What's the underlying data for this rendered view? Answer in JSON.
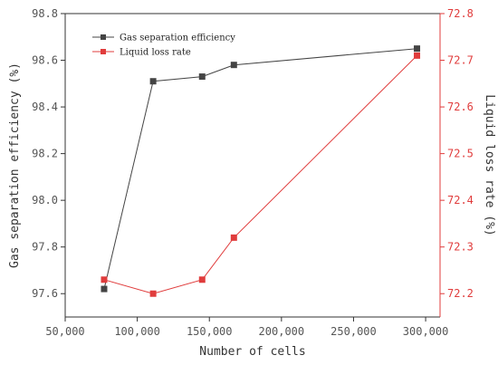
{
  "chart_data": {
    "type": "line",
    "xlabel": "Number of cells",
    "ylabel_left": "Gas separation efficiency (%)",
    "ylabel_right": "Liquid loss rate (%)",
    "x": [
      77000,
      111000,
      145000,
      167000,
      294000
    ],
    "xlim": [
      50000,
      310000
    ],
    "x_ticks": [
      50000,
      100000,
      150000,
      200000,
      250000,
      300000
    ],
    "x_tick_labels": [
      "50,000",
      "100,000",
      "150,000",
      "200,000",
      "250,000",
      "300,000"
    ],
    "ylim_left": [
      97.5,
      98.8
    ],
    "y_ticks_left": [
      97.6,
      97.8,
      98.0,
      98.2,
      98.4,
      98.6,
      98.8
    ],
    "y_tick_labels_left": [
      "97.6",
      "97.8",
      "98.0",
      "98.2",
      "98.4",
      "98.6",
      "98.8"
    ],
    "ylim_right": [
      72.15,
      72.8
    ],
    "y_ticks_right": [
      72.2,
      72.3,
      72.4,
      72.5,
      72.6,
      72.7,
      72.8
    ],
    "y_tick_labels_right": [
      "72.2",
      "72.3",
      "72.4",
      "72.5",
      "72.6",
      "72.7",
      "72.8"
    ],
    "series": [
      {
        "name": "Gas separation efficiency",
        "axis": "left",
        "color": "#444444",
        "values": [
          97.62,
          98.51,
          98.53,
          98.58,
          98.65
        ]
      },
      {
        "name": "Liquid loss rate",
        "axis": "right",
        "color": "#e03c3c",
        "values": [
          72.23,
          72.2,
          72.23,
          72.32,
          72.71
        ]
      }
    ],
    "legend_position": "top-left",
    "grid": false
  }
}
